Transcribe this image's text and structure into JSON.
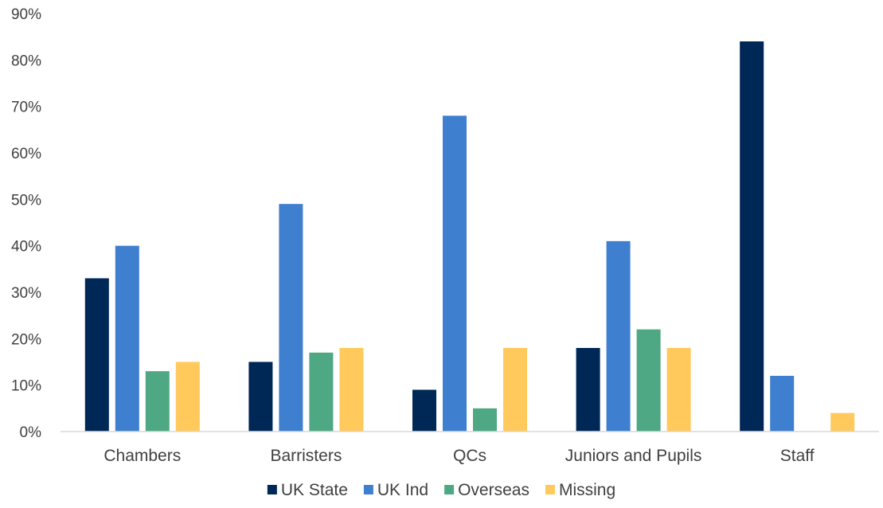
{
  "chart_data": {
    "type": "bar",
    "title": "",
    "xlabel": "",
    "ylabel": "",
    "categories": [
      "Chambers",
      "Barristers",
      "QCs",
      "Juniors and Pupils",
      "Staff"
    ],
    "series": [
      {
        "name": "UK State",
        "color": "#002856",
        "values": [
          33,
          15,
          9,
          18,
          84
        ]
      },
      {
        "name": "UK Ind",
        "color": "#3f7fcf",
        "values": [
          40,
          49,
          68,
          41,
          12
        ]
      },
      {
        "name": "Overseas",
        "color": "#4fa884",
        "values": [
          13,
          17,
          5,
          22,
          0
        ]
      },
      {
        "name": "Missing",
        "color": "#ffc95c",
        "values": [
          15,
          18,
          18,
          18,
          4
        ]
      }
    ],
    "ylim": [
      0,
      90
    ],
    "yticks": [
      0,
      10,
      20,
      30,
      40,
      50,
      60,
      70,
      80,
      90
    ],
    "ytick_suffix": "%",
    "grid": false,
    "legend_position": "bottom"
  }
}
